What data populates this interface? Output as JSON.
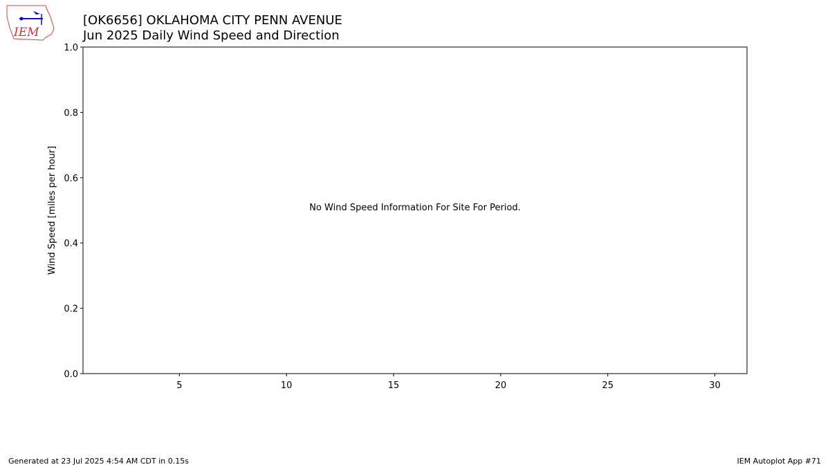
{
  "chart_data": {
    "type": "bar",
    "title": "[OK6656] OKLAHOMA CITY PENN AVENUE",
    "subtitle": "Jun 2025 Daily Wind Speed and Direction",
    "ylabel": "Wind Speed [miles per hour]",
    "annotation": "No Wind Speed Information For Site For Period.",
    "xlim": [
      0.5,
      31.5
    ],
    "xticks": [
      5,
      10,
      15,
      20,
      25,
      30
    ],
    "ylim": [
      0,
      1
    ],
    "yticks": [
      {
        "value": 0,
        "label": "0.0"
      },
      0.2,
      0.4,
      0.6,
      0.8,
      {
        "value": 1,
        "label": "1.0"
      }
    ],
    "logo_text": "IEM",
    "footer_left": "Generated at 23 Jul 2025 4:54 AM CDT in 0.15s",
    "footer_right": "IEM Autoplot App #71"
  }
}
